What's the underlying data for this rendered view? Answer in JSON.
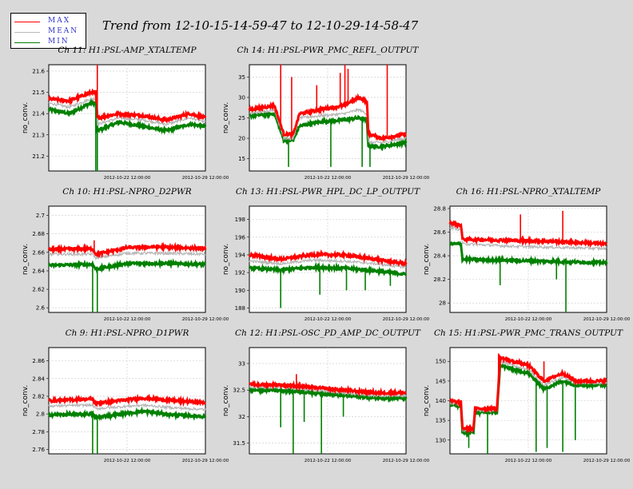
{
  "title": "Trend from 12-10-15-14-59-47 to 12-10-29-14-58-47",
  "legend": [
    {
      "label": "MAX",
      "color": "#ff0000"
    },
    {
      "label": "MEAN",
      "color": "#b8b8b8"
    },
    {
      "label": "MIN",
      "color": "#008000"
    }
  ],
  "chart_data": [
    {
      "type": "line",
      "title": "Ch 11: H1:PSL-AMP_XTALTEMP",
      "ylabel": "no_conv.",
      "yticks": [
        "21.2",
        "21.3",
        "21.4",
        "21.5",
        "21.6"
      ],
      "ylim": [
        21.13,
        21.63
      ],
      "xticks": [
        "2012-10-22 12:00:00",
        "2012-10-29 12:00:00"
      ],
      "x": [
        0,
        0.13,
        0.27,
        0.3,
        0.31,
        0.45,
        0.6,
        0.75,
        0.9,
        1.0
      ],
      "series": [
        {
          "name": "MAX",
          "values": [
            21.47,
            21.46,
            21.5,
            21.5,
            21.38,
            21.4,
            21.39,
            21.37,
            21.4,
            21.38
          ]
        },
        {
          "name": "MEAN",
          "values": [
            21.45,
            21.43,
            21.47,
            21.47,
            21.35,
            21.38,
            21.37,
            21.35,
            21.38,
            21.36
          ]
        },
        {
          "name": "MIN",
          "values": [
            21.42,
            21.4,
            21.45,
            21.45,
            21.32,
            21.36,
            21.34,
            21.32,
            21.35,
            21.34
          ]
        }
      ],
      "spikes_max": [
        [
          0.31,
          21.63
        ]
      ],
      "spikes_min": [
        [
          0.3,
          21.13
        ],
        [
          0.31,
          21.13
        ]
      ]
    },
    {
      "type": "line",
      "title": "Ch 14: H1:PSL-PWR_PMC_REFL_OUTPUT",
      "ylabel": "no_conv.",
      "yticks": [
        "15",
        "20",
        "25",
        "30",
        "35"
      ],
      "ylim": [
        12,
        38
      ],
      "xticks": [
        "2012-10-22 12:00:00",
        "2012-10-29 12:00:00"
      ],
      "x": [
        0,
        0.16,
        0.22,
        0.28,
        0.32,
        0.45,
        0.6,
        0.7,
        0.75,
        0.76,
        0.85,
        1.0
      ],
      "series": [
        {
          "name": "MAX",
          "values": [
            27,
            28,
            21,
            21,
            26,
            27,
            28,
            30,
            29,
            21,
            20,
            21
          ]
        },
        {
          "name": "MEAN",
          "values": [
            26,
            27,
            20,
            20,
            25,
            25.5,
            26,
            27,
            26,
            19,
            19,
            20
          ]
        },
        {
          "name": "MIN",
          "values": [
            25.5,
            26,
            19.5,
            19.5,
            23,
            24,
            24.5,
            25,
            24.5,
            18,
            18,
            19
          ]
        }
      ],
      "spikes_max": [
        [
          0.2,
          38
        ],
        [
          0.27,
          35
        ],
        [
          0.43,
          33
        ],
        [
          0.58,
          36
        ],
        [
          0.61,
          38
        ],
        [
          0.63,
          37
        ],
        [
          0.88,
          38
        ]
      ],
      "spikes_min": [
        [
          0.25,
          13
        ],
        [
          0.52,
          13
        ],
        [
          0.72,
          13
        ],
        [
          0.77,
          13
        ]
      ]
    },
    {
      "type": "line",
      "title": "Ch 10: H1:PSL-NPRO_D2PWR",
      "ylabel": "no_conv.",
      "yticks": [
        "2.6",
        "2.62",
        "2.64",
        "2.66",
        "2.68",
        "2.7"
      ],
      "ylim": [
        2.595,
        2.71
      ],
      "xticks": [
        "2012-10-22 12:00:00",
        "2012-10-29 12:00:00"
      ],
      "x": [
        0,
        0.28,
        0.3,
        0.5,
        0.7,
        1.0
      ],
      "series": [
        {
          "name": "MAX",
          "values": [
            2.663,
            2.664,
            2.658,
            2.665,
            2.666,
            2.664
          ]
        },
        {
          "name": "MEAN",
          "values": [
            2.658,
            2.658,
            2.654,
            2.659,
            2.659,
            2.658
          ]
        },
        {
          "name": "MIN",
          "values": [
            2.646,
            2.647,
            2.642,
            2.648,
            2.648,
            2.647
          ]
        }
      ],
      "spikes_max": [
        [
          0.29,
          2.673
        ]
      ],
      "spikes_min": [
        [
          0.28,
          2.595
        ],
        [
          0.31,
          2.595
        ]
      ]
    },
    {
      "type": "line",
      "title": "Ch 13: H1:PSL-PWR_HPL_DC_LP_OUTPUT",
      "ylabel": "no_conv.",
      "yticks": [
        "188",
        "190",
        "192",
        "194",
        "196",
        "198"
      ],
      "ylim": [
        187.5,
        199.5
      ],
      "xticks": [
        "2012-10-22 12:00:00",
        "2012-10-29 12:00:00"
      ],
      "x": [
        0,
        0.2,
        0.4,
        0.6,
        0.8,
        1.0
      ],
      "series": [
        {
          "name": "MAX",
          "values": [
            194,
            193.5,
            194,
            194,
            193.5,
            193
          ]
        },
        {
          "name": "MEAN",
          "values": [
            193.3,
            193,
            193.4,
            193.3,
            193,
            192.6
          ]
        },
        {
          "name": "MIN",
          "values": [
            192.5,
            192.3,
            192.6,
            192.5,
            192.2,
            191.8
          ]
        }
      ],
      "spikes_max": [],
      "spikes_min": [
        [
          0.2,
          188
        ],
        [
          0.45,
          189.5
        ],
        [
          0.62,
          190
        ],
        [
          0.74,
          190
        ],
        [
          0.9,
          190.5
        ]
      ]
    },
    {
      "type": "line",
      "title": "Ch 16: H1:PSL-NPRO_XTALTEMP",
      "ylabel": "no_conv.",
      "yticks": [
        "28",
        "28.2",
        "28.4",
        "28.6",
        "28.8"
      ],
      "ylim": [
        27.92,
        28.82
      ],
      "xticks": [
        "2012-10-22 12:00:00",
        "2012-10-29 12:00:00"
      ],
      "x": [
        0,
        0.07,
        0.08,
        0.4,
        0.7,
        1.0
      ],
      "series": [
        {
          "name": "MAX",
          "values": [
            28.68,
            28.66,
            28.54,
            28.53,
            28.52,
            28.5
          ]
        },
        {
          "name": "MEAN",
          "values": [
            28.64,
            28.62,
            28.5,
            28.48,
            28.47,
            28.46
          ]
        },
        {
          "name": "MIN",
          "values": [
            28.5,
            28.5,
            28.37,
            28.36,
            28.35,
            28.34
          ]
        }
      ],
      "spikes_max": [
        [
          0.45,
          28.75
        ],
        [
          0.72,
          28.78
        ]
      ],
      "spikes_min": [
        [
          0.32,
          28.15
        ],
        [
          0.68,
          28.2
        ],
        [
          0.74,
          27.92
        ]
      ]
    },
    {
      "type": "line",
      "title": "Ch 9: H1:PSL-NPRO_D1PWR",
      "ylabel": "no_conv.",
      "yticks": [
        "2.76",
        "2.78",
        "2.8",
        "2.82",
        "2.84",
        "2.86"
      ],
      "ylim": [
        2.755,
        2.875
      ],
      "xticks": [
        "2012-10-22 12:00:00",
        "2012-10-29 12:00:00"
      ],
      "x": [
        0,
        0.28,
        0.3,
        0.6,
        0.8,
        1.0
      ],
      "series": [
        {
          "name": "MAX",
          "values": [
            2.815,
            2.817,
            2.812,
            2.818,
            2.815,
            2.813
          ]
        },
        {
          "name": "MEAN",
          "values": [
            2.809,
            2.81,
            2.806,
            2.81,
            2.807,
            2.805
          ]
        },
        {
          "name": "MIN",
          "values": [
            2.799,
            2.8,
            2.796,
            2.803,
            2.799,
            2.797
          ]
        }
      ],
      "spikes_max": [],
      "spikes_min": [
        [
          0.28,
          2.755
        ],
        [
          0.31,
          2.755
        ]
      ]
    },
    {
      "type": "line",
      "title": "Ch 12: H1:PSL-OSC_PD_AMP_DC_OUTPUT",
      "ylabel": "no_conv.",
      "yticks": [
        "31.5",
        "32",
        "32.5",
        "33"
      ],
      "ylim": [
        31.3,
        33.3
      ],
      "xticks": [
        "2012-10-22 12:00:00",
        "2012-10-29 12:00:00"
      ],
      "x": [
        0,
        0.2,
        0.4,
        0.6,
        0.8,
        1.0
      ],
      "series": [
        {
          "name": "MAX",
          "values": [
            32.6,
            32.6,
            32.55,
            32.5,
            32.45,
            32.45
          ]
        },
        {
          "name": "MEAN",
          "values": [
            32.55,
            32.55,
            32.5,
            32.45,
            32.4,
            32.4
          ]
        },
        {
          "name": "MIN",
          "values": [
            32.5,
            32.5,
            32.45,
            32.4,
            32.35,
            32.35
          ]
        }
      ],
      "spikes_max": [
        [
          0.3,
          32.8
        ]
      ],
      "spikes_min": [
        [
          0.2,
          31.8
        ],
        [
          0.28,
          31.3
        ],
        [
          0.35,
          31.9
        ],
        [
          0.46,
          31.3
        ],
        [
          0.6,
          32.0
        ]
      ]
    },
    {
      "type": "line",
      "title": "Ch 15: H1:PSL-PWR_PMC_TRANS_OUTPUT",
      "ylabel": "no_conv.",
      "yticks": [
        "130",
        "135",
        "140",
        "145",
        "150"
      ],
      "ylim": [
        126.5,
        153.5
      ],
      "xticks": [
        "2012-10-22 12:00:00",
        "2012-10-29 12:00:00"
      ],
      "x": [
        0,
        0.07,
        0.08,
        0.15,
        0.16,
        0.22,
        0.3,
        0.32,
        0.4,
        0.5,
        0.6,
        0.72,
        0.8,
        0.9,
        1.0
      ],
      "series": [
        {
          "name": "MAX",
          "values": [
            140,
            139.5,
            133,
            133,
            138,
            138,
            138,
            151,
            150,
            149,
            145,
            147,
            145,
            145,
            145
          ]
        },
        {
          "name": "MEAN",
          "values": [
            139.5,
            139,
            132.5,
            132.5,
            137.5,
            137.5,
            137.5,
            150,
            149,
            148,
            144,
            146,
            144.5,
            144.5,
            144.5
          ]
        },
        {
          "name": "MIN",
          "values": [
            139,
            138.5,
            132,
            132,
            137,
            137,
            137,
            149,
            148,
            147,
            143,
            145,
            144,
            144,
            144
          ]
        }
      ],
      "spikes_max": [
        [
          0.31,
          152
        ],
        [
          0.6,
          150
        ]
      ],
      "spikes_min": [
        [
          0.12,
          128
        ],
        [
          0.24,
          126.5
        ],
        [
          0.55,
          127
        ],
        [
          0.62,
          128
        ],
        [
          0.72,
          127
        ],
        [
          0.8,
          130
        ]
      ]
    }
  ]
}
